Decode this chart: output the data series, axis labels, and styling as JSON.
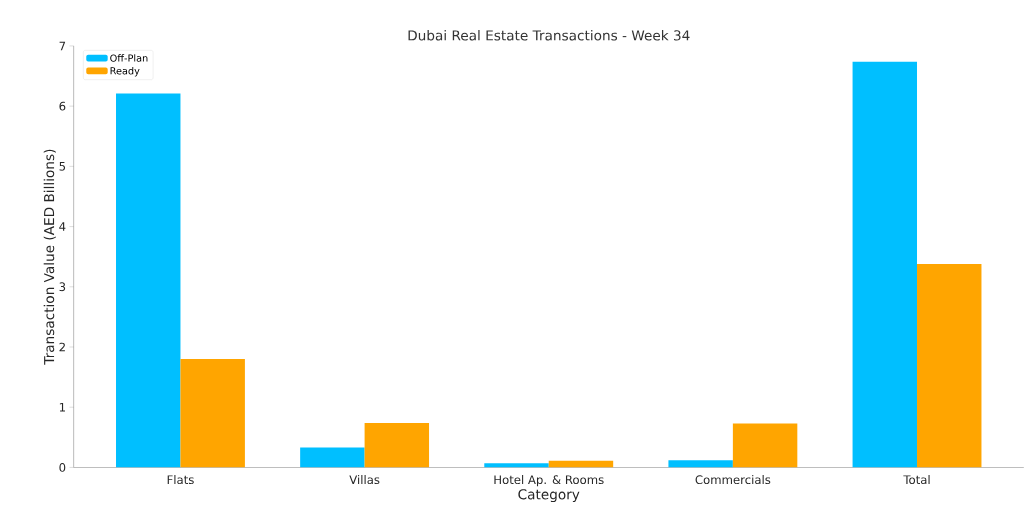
{
  "chart_data": {
    "type": "bar",
    "title": "Dubai Real Estate Transactions - Week 34",
    "xlabel": "Category",
    "ylabel": "Transaction Value (AED Billions)",
    "categories": [
      "Flats",
      "Villas",
      "Hotel Ap. & Rooms",
      "Commercials",
      "Total"
    ],
    "series": [
      {
        "name": "Off-Plan",
        "color": "#00bfff",
        "values": [
          6.21,
          0.33,
          0.07,
          0.12,
          6.74
        ]
      },
      {
        "name": "Ready",
        "color": "#ffa500",
        "values": [
          1.8,
          0.74,
          0.11,
          0.73,
          3.38
        ]
      }
    ],
    "ylim": [
      0,
      7
    ],
    "yticks": [
      0,
      1,
      2,
      3,
      4,
      5,
      6,
      7
    ],
    "grid": false,
    "legend": "top left"
  }
}
